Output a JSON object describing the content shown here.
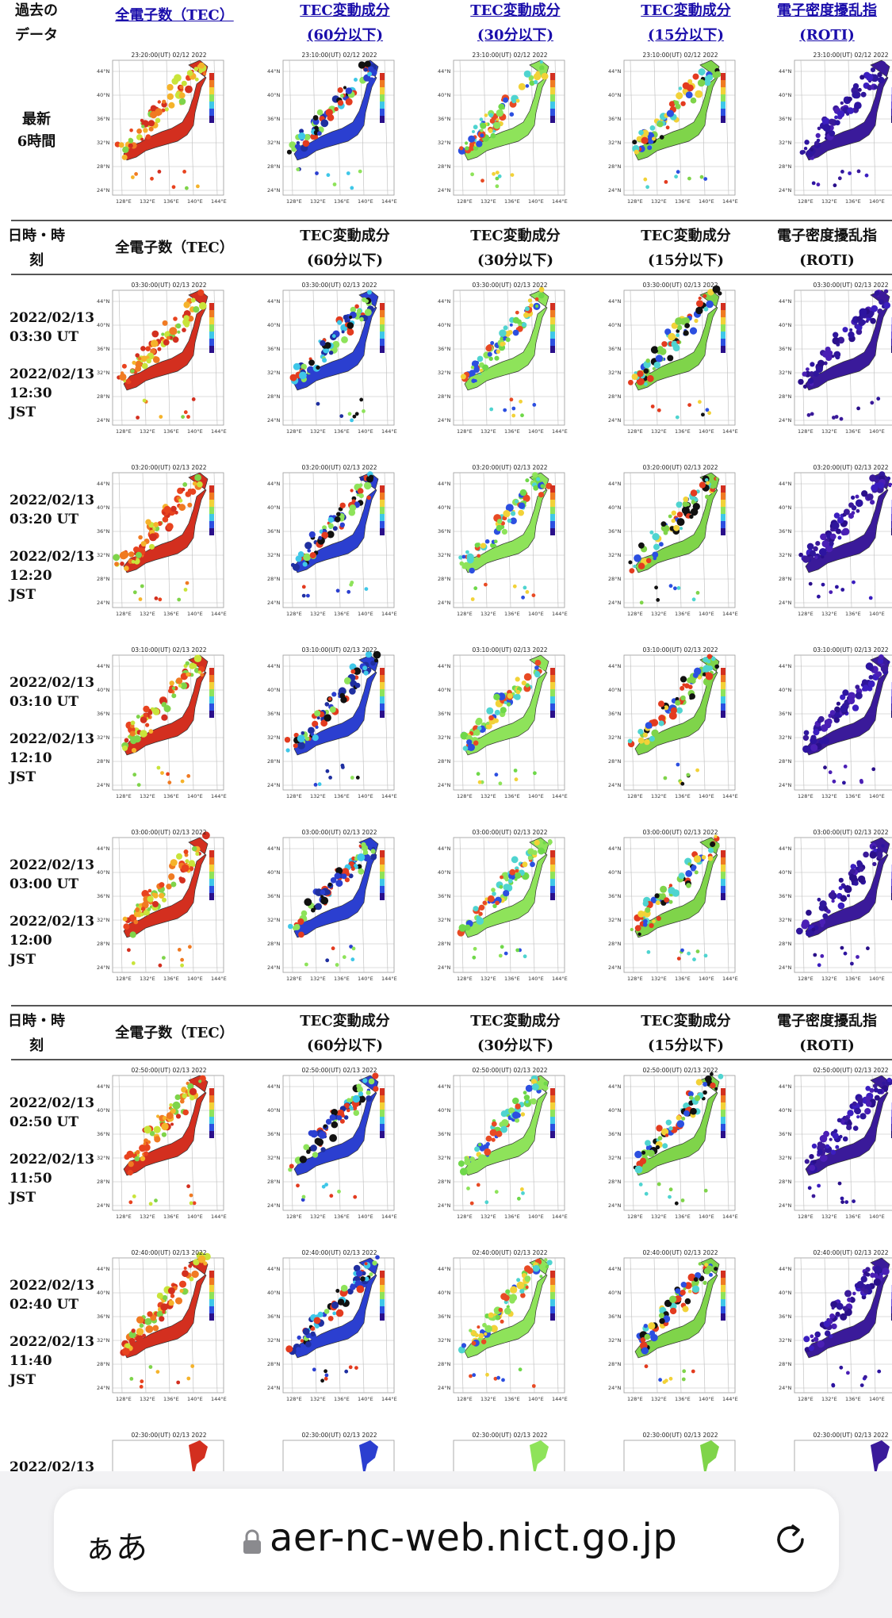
{
  "header_top": {
    "left": [
      "過去の",
      "データ"
    ],
    "columns": [
      {
        "line1": "全電子数（TEC）",
        "line2": ""
      },
      {
        "line1": "TEC変動成分",
        "line2": "(60分以下)"
      },
      {
        "line1": "TEC変動成分",
        "line2": "(30分以下)"
      },
      {
        "line1": "TEC変動成分",
        "line2": "(15分以下)"
      },
      {
        "line1": "電子密度擾乱指",
        "line2": "(ROTI)"
      }
    ]
  },
  "latest_row": {
    "label": [
      "最新",
      "6時間"
    ]
  },
  "section_header": {
    "left": [
      "日時・時",
      "刻"
    ],
    "columns": [
      {
        "line1": "全電子数（TEC）",
        "line2": ""
      },
      {
        "line1": "TEC変動成分",
        "line2": "(60分以下)"
      },
      {
        "line1": "TEC変動成分",
        "line2": "(30分以下)"
      },
      {
        "line1": "TEC変動成分",
        "line2": "(15分以下)"
      },
      {
        "line1": "電子密度擾乱指",
        "line2": "(ROTI)"
      }
    ]
  },
  "map_timestamps": {
    "latest": "23:10:00(UT) 02/12 2022",
    "latest_tec": "23:20:00(UT) 02/12 2022"
  },
  "rows": [
    {
      "ut_date": "2022/02/13",
      "ut": "03:30 UT",
      "jst_date": "2022/02/13",
      "jst": "12:30",
      "jst_label": "JST",
      "stamp": "03:30:00(UT) 02/13 2022"
    },
    {
      "ut_date": "2022/02/13",
      "ut": "03:20 UT",
      "jst_date": "2022/02/13",
      "jst": "12:20",
      "jst_label": "JST",
      "stamp": "03:20:00(UT) 02/13 2022"
    },
    {
      "ut_date": "2022/02/13",
      "ut": "03:10 UT",
      "jst_date": "2022/02/13",
      "jst": "12:10",
      "jst_label": "JST",
      "stamp": "03:10:00(UT) 02/13 2022"
    },
    {
      "ut_date": "2022/02/13",
      "ut": "03:00 UT",
      "jst_date": "2022/02/13",
      "jst": "12:00",
      "jst_label": "JST",
      "stamp": "03:00:00(UT) 02/13 2022"
    },
    {
      "ut_date": "2022/02/13",
      "ut": "02:50 UT",
      "jst_date": "2022/02/13",
      "jst": "11:50",
      "jst_label": "JST",
      "stamp": "02:50:00(UT) 02/13 2022"
    },
    {
      "ut_date": "2022/02/13",
      "ut": "02:40 UT",
      "jst_date": "2022/02/13",
      "jst": "11:40",
      "jst_label": "JST",
      "stamp": "02:40:00(UT) 02/13 2022"
    },
    {
      "ut_date": "2022/02/13",
      "ut": "",
      "jst_date": "",
      "jst": "",
      "jst_label": "",
      "stamp": "02:30:00(UT) 02/13 2022"
    }
  ],
  "map_axes": {
    "lat": [
      "44°N",
      "40°N",
      "36°N",
      "32°N",
      "28°N",
      "24°N"
    ],
    "lon": [
      "128°E",
      "132°E",
      "136°E",
      "140°E",
      "144°E"
    ]
  },
  "colors": {
    "link": "#1a0dab",
    "rule": "#555555"
  },
  "browser": {
    "text_size_button": "ぁあ",
    "url": "aer-nc-web.nict.go.jp",
    "icons": {
      "lock": "lock-icon",
      "reload": "reload-icon"
    }
  }
}
